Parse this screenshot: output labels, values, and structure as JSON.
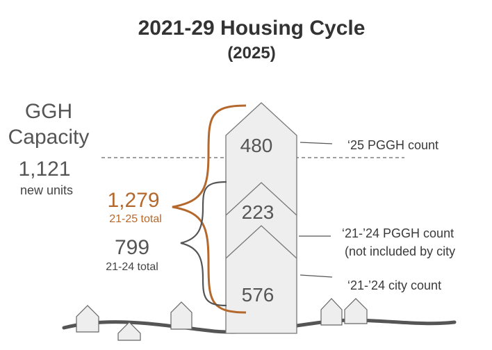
{
  "title": "2021-29 Housing Cycle",
  "subtitle": "(2025)",
  "capacity": {
    "heading_line1": "GGH",
    "heading_line2": "Capacity",
    "value": "1,121",
    "caption": "new units"
  },
  "totals": {
    "t25_value": "1,279",
    "t25_caption": "21-25 total",
    "t24_value": "799",
    "t24_caption": "21-24 total"
  },
  "segments": [
    {
      "value": "480",
      "label": "‘25 PGGH count"
    },
    {
      "value": "223",
      "label_line1": "‘21-’24 PGGH count",
      "label_line2": "(not included by city"
    },
    {
      "value": "576",
      "label": "‘21-’24 city count"
    }
  ],
  "colors": {
    "accent": "#b5682b",
    "dark": "#555555",
    "building": "#eeeeee",
    "ground": "#555555"
  }
}
